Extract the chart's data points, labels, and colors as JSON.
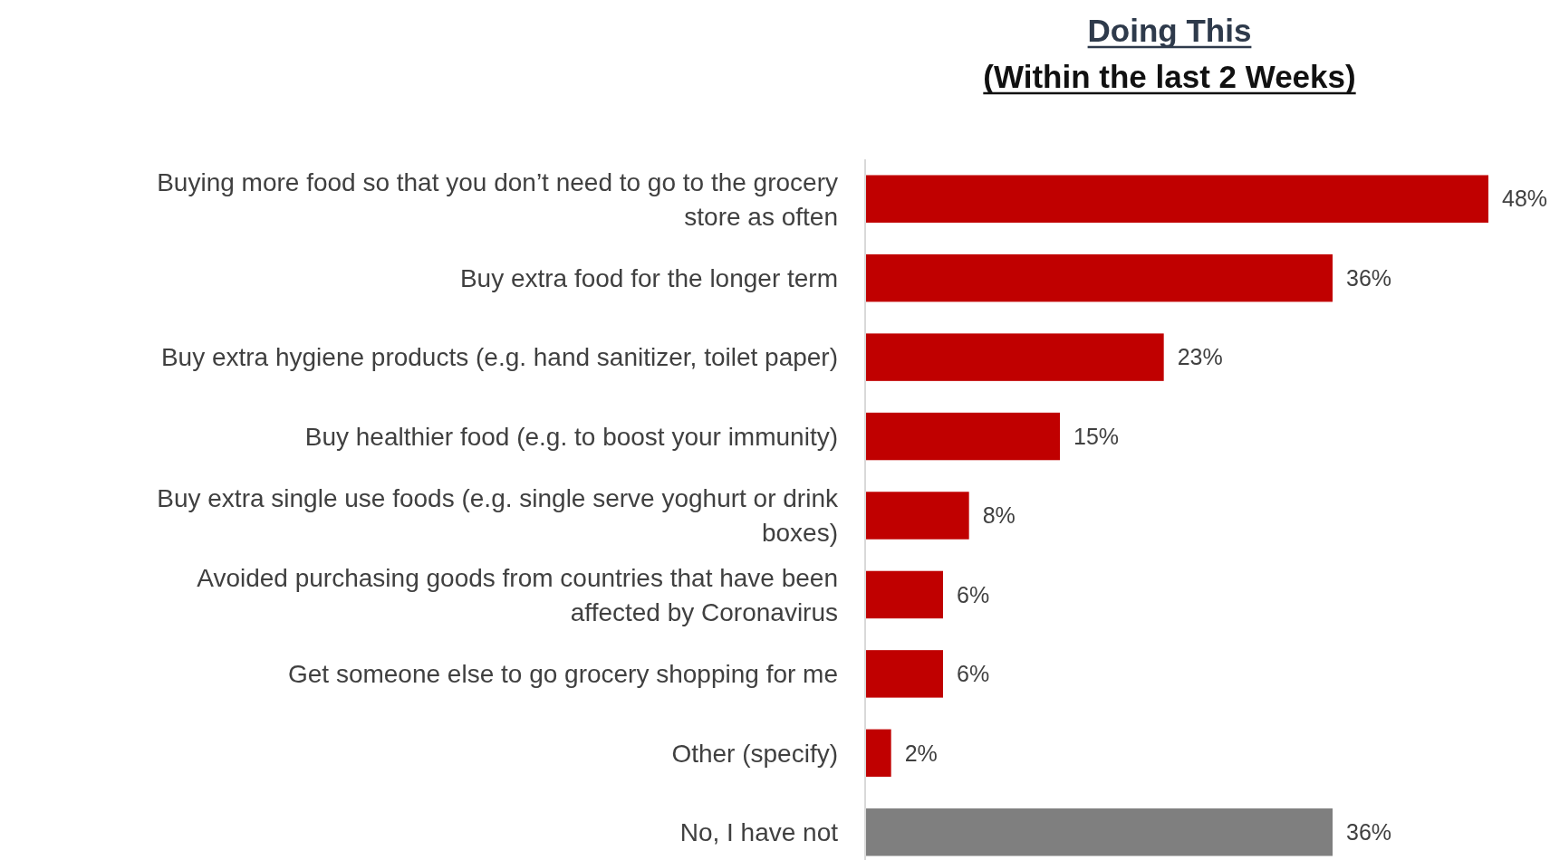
{
  "chart_data": {
    "type": "bar",
    "orientation": "horizontal",
    "title": "Doing This\n(Within the last 2 Weeks)",
    "categories": [
      "Buying more food so that you don’t need to go to the grocery store as often",
      "Buy extra food for the longer term",
      "Buy extra hygiene products (e.g. hand sanitizer, toilet paper)",
      "Buy healthier food (e.g. to boost your immunity)",
      "Buy extra single use foods (e.g. single serve yoghurt or drink boxes)",
      "Avoided purchasing goods from countries that have been affected by Coronavirus",
      "Get someone else to go grocery shopping for me",
      "Other (specify)",
      "No, I have not"
    ],
    "values": [
      48,
      36,
      23,
      15,
      8,
      6,
      6,
      2,
      36
    ],
    "colors": [
      "#c00000",
      "#c00000",
      "#c00000",
      "#c00000",
      "#c00000",
      "#c00000",
      "#c00000",
      "#c00000",
      "#7f7f7f"
    ],
    "value_labels": [
      "48%",
      "36%",
      "23%",
      "15%",
      "8%",
      "6%",
      "6%",
      "2%",
      "36%"
    ]
  }
}
